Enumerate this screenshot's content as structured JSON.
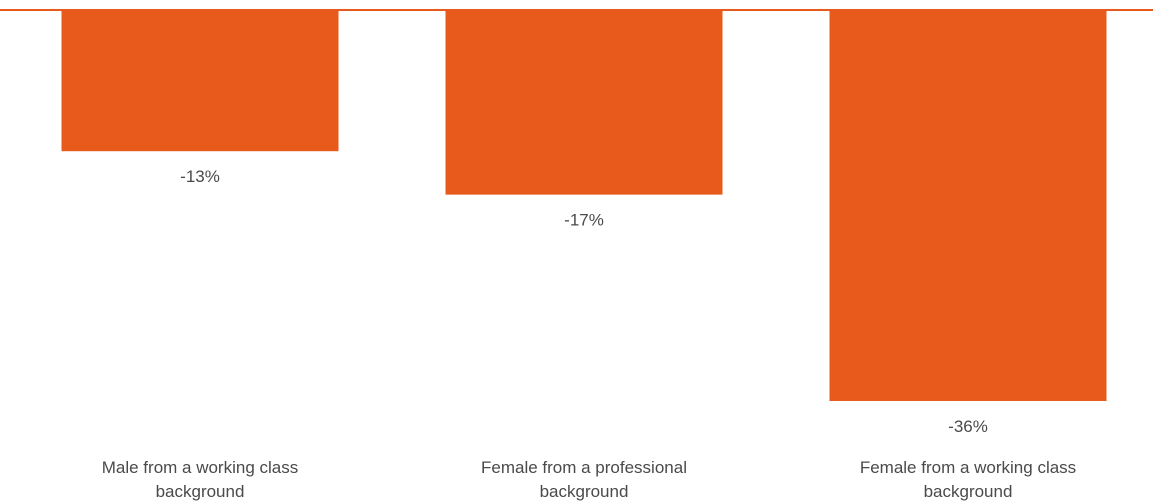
{
  "chart_data": {
    "type": "bar",
    "orientation": "vertical",
    "categories": [
      [
        "Male from a working class",
        "background"
      ],
      [
        "Female from a professional",
        "background"
      ],
      [
        "Female from a working class",
        "background"
      ]
    ],
    "values": [
      -13,
      -17,
      -36
    ],
    "value_labels": [
      "-13%",
      "-17%",
      "-36%"
    ],
    "ylim": [
      -36,
      0
    ],
    "grid": false,
    "legend": "none",
    "colors": {
      "bar": "#E8591C",
      "baseline": "#E8591C",
      "text": "#4a4a4a"
    }
  }
}
